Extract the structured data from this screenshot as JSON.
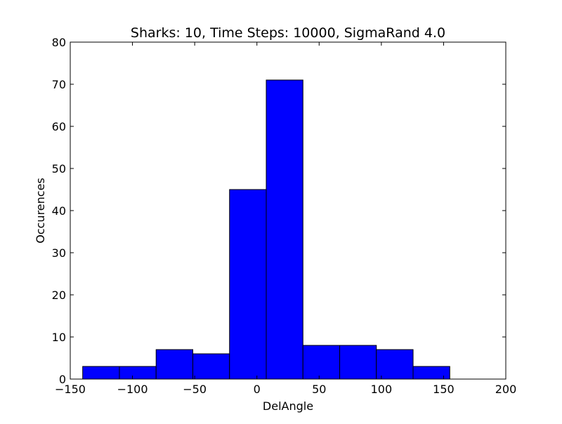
{
  "chart_data": {
    "type": "bar",
    "title": "Sharks: 10, Time Steps: 10000, SigmaRand 4.0",
    "xlabel": "DelAngle",
    "ylabel": "Occurences",
    "xlim": [
      -150,
      200
    ],
    "ylim": [
      0,
      80
    ],
    "xticks": [
      "−150",
      "−100",
      "−50",
      "0",
      "50",
      "100",
      "150",
      "200"
    ],
    "xtick_values": [
      -150,
      -100,
      -50,
      0,
      50,
      100,
      150,
      200
    ],
    "yticks": [
      "0",
      "10",
      "20",
      "30",
      "40",
      "50",
      "60",
      "70",
      "80"
    ],
    "ytick_values": [
      0,
      10,
      20,
      30,
      40,
      50,
      60,
      70,
      80
    ],
    "bin_edges": [
      -140,
      -110.5,
      -81,
      -51.5,
      -22,
      7.5,
      37,
      66.5,
      96,
      125.5,
      155
    ],
    "values": [
      3,
      3,
      7,
      6,
      45,
      71,
      8,
      8,
      7,
      3
    ],
    "bar_color": "#0000ff",
    "edge_color": "#000000",
    "grid": false,
    "legend": "none"
  }
}
